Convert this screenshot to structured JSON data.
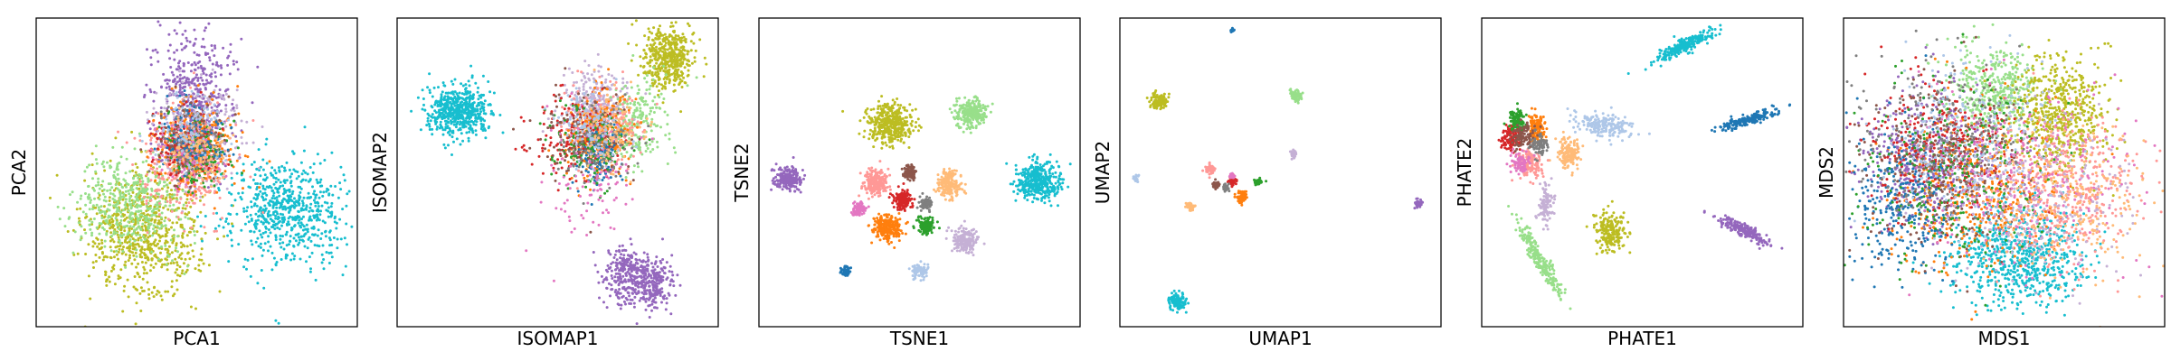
{
  "figure": {
    "palette": [
      "#1f77b4",
      "#ff7f0e",
      "#2ca02c",
      "#d62728",
      "#9467bd",
      "#8c564b",
      "#e377c2",
      "#7f7f7f",
      "#bcbd22",
      "#17becf",
      "#98df8a",
      "#ff9896",
      "#c5b0d5",
      "#ffbb78",
      "#aec7e8"
    ]
  },
  "chart_data": [
    {
      "type": "scatter",
      "title": "",
      "xlabel": "PCA1",
      "ylabel": "PCA2",
      "grid": false,
      "ticks": "none",
      "clusters": [
        {
          "color": "#bcbd22",
          "x": 0.33,
          "y": 0.3,
          "sx": 0.09,
          "sy": 0.1,
          "n": 700
        },
        {
          "color": "#98df8a",
          "x": 0.3,
          "y": 0.4,
          "sx": 0.08,
          "sy": 0.08,
          "n": 450
        },
        {
          "color": "#17becf",
          "x": 0.78,
          "y": 0.38,
          "sx": 0.09,
          "sy": 0.09,
          "n": 650
        },
        {
          "color": "#9467bd",
          "x": 0.49,
          "y": 0.73,
          "sx": 0.06,
          "sy": 0.11,
          "n": 500
        },
        {
          "color": "#c5b0d5",
          "x": 0.5,
          "y": 0.62,
          "sx": 0.07,
          "sy": 0.08,
          "n": 300
        },
        {
          "color": "#ff9896",
          "x": 0.47,
          "y": 0.52,
          "sx": 0.07,
          "sy": 0.08,
          "n": 300
        },
        {
          "color": "#ff7f0e",
          "x": 0.49,
          "y": 0.58,
          "sx": 0.06,
          "sy": 0.07,
          "n": 320
        },
        {
          "color": "#d62728",
          "x": 0.47,
          "y": 0.58,
          "sx": 0.05,
          "sy": 0.06,
          "n": 160
        },
        {
          "color": "#2ca02c",
          "x": 0.5,
          "y": 0.57,
          "sx": 0.05,
          "sy": 0.06,
          "n": 130
        },
        {
          "color": "#8c564b",
          "x": 0.48,
          "y": 0.6,
          "sx": 0.05,
          "sy": 0.06,
          "n": 100
        },
        {
          "color": "#e377c2",
          "x": 0.47,
          "y": 0.55,
          "sx": 0.05,
          "sy": 0.06,
          "n": 100
        },
        {
          "color": "#7f7f7f",
          "x": 0.49,
          "y": 0.6,
          "sx": 0.05,
          "sy": 0.06,
          "n": 100
        },
        {
          "color": "#1f77b4",
          "x": 0.49,
          "y": 0.62,
          "sx": 0.05,
          "sy": 0.06,
          "n": 100
        },
        {
          "color": "#ffbb78",
          "x": 0.5,
          "y": 0.56,
          "sx": 0.05,
          "sy": 0.06,
          "n": 100
        },
        {
          "color": "#aec7e8",
          "x": 0.48,
          "y": 0.64,
          "sx": 0.05,
          "sy": 0.06,
          "n": 90
        }
      ]
    },
    {
      "type": "scatter",
      "title": "",
      "xlabel": "ISOMAP1",
      "ylabel": "ISOMAP2",
      "grid": false,
      "ticks": "none",
      "clusters": [
        {
          "color": "#17becf",
          "x": 0.19,
          "y": 0.7,
          "sx": 0.05,
          "sy": 0.04,
          "n": 550
        },
        {
          "color": "#bcbd22",
          "x": 0.84,
          "y": 0.87,
          "sx": 0.04,
          "sy": 0.05,
          "n": 450
        },
        {
          "color": "#9467bd",
          "x": 0.72,
          "y": 0.17,
          "sx": 0.04,
          "sy": 0.05,
          "n": 300
        },
        {
          "color": "#9467bd",
          "x": 0.8,
          "y": 0.14,
          "sx": 0.03,
          "sy": 0.04,
          "n": 200
        },
        {
          "color": "#c5b0d5",
          "x": 0.62,
          "y": 0.7,
          "sx": 0.05,
          "sy": 0.07,
          "n": 350
        },
        {
          "color": "#98df8a",
          "x": 0.74,
          "y": 0.66,
          "sx": 0.05,
          "sy": 0.07,
          "n": 220
        },
        {
          "color": "#ff9896",
          "x": 0.63,
          "y": 0.65,
          "sx": 0.06,
          "sy": 0.06,
          "n": 220
        },
        {
          "color": "#ff7f0e",
          "x": 0.62,
          "y": 0.62,
          "sx": 0.05,
          "sy": 0.07,
          "n": 250
        },
        {
          "color": "#1f77b4",
          "x": 0.63,
          "y": 0.55,
          "sx": 0.03,
          "sy": 0.05,
          "n": 150
        },
        {
          "color": "#d62728",
          "x": 0.55,
          "y": 0.62,
          "sx": 0.06,
          "sy": 0.07,
          "n": 150
        },
        {
          "color": "#2ca02c",
          "x": 0.6,
          "y": 0.58,
          "sx": 0.06,
          "sy": 0.07,
          "n": 130
        },
        {
          "color": "#8c564b",
          "x": 0.56,
          "y": 0.62,
          "sx": 0.07,
          "sy": 0.07,
          "n": 110
        },
        {
          "color": "#e377c2",
          "x": 0.6,
          "y": 0.5,
          "sx": 0.07,
          "sy": 0.1,
          "n": 110
        },
        {
          "color": "#7f7f7f",
          "x": 0.62,
          "y": 0.6,
          "sx": 0.06,
          "sy": 0.07,
          "n": 100
        },
        {
          "color": "#ffbb78",
          "x": 0.66,
          "y": 0.64,
          "sx": 0.05,
          "sy": 0.06,
          "n": 120
        },
        {
          "color": "#aec7e8",
          "x": 0.6,
          "y": 0.64,
          "sx": 0.05,
          "sy": 0.06,
          "n": 100
        }
      ]
    },
    {
      "type": "scatter",
      "title": "",
      "xlabel": "TSNE1",
      "ylabel": "TSNE2",
      "grid": false,
      "ticks": "none",
      "clusters": [
        {
          "color": "#bcbd22",
          "x": 0.41,
          "y": 0.66,
          "sx": 0.035,
          "sy": 0.033,
          "n": 400
        },
        {
          "color": "#98df8a",
          "x": 0.66,
          "y": 0.69,
          "sx": 0.025,
          "sy": 0.022,
          "n": 250
        },
        {
          "color": "#17becf",
          "x": 0.87,
          "y": 0.47,
          "sx": 0.035,
          "sy": 0.03,
          "n": 400
        },
        {
          "color": "#9467bd",
          "x": 0.09,
          "y": 0.48,
          "sx": 0.02,
          "sy": 0.02,
          "n": 200
        },
        {
          "color": "#ff9896",
          "x": 0.36,
          "y": 0.47,
          "sx": 0.02,
          "sy": 0.02,
          "n": 200
        },
        {
          "color": "#ffbb78",
          "x": 0.59,
          "y": 0.46,
          "sx": 0.02,
          "sy": 0.022,
          "n": 200
        },
        {
          "color": "#8c564b",
          "x": 0.47,
          "y": 0.5,
          "sx": 0.01,
          "sy": 0.012,
          "n": 90
        },
        {
          "color": "#d62728",
          "x": 0.45,
          "y": 0.41,
          "sx": 0.014,
          "sy": 0.014,
          "n": 150
        },
        {
          "color": "#7f7f7f",
          "x": 0.52,
          "y": 0.4,
          "sx": 0.01,
          "sy": 0.01,
          "n": 80
        },
        {
          "color": "#e377c2",
          "x": 0.31,
          "y": 0.38,
          "sx": 0.01,
          "sy": 0.01,
          "n": 80
        },
        {
          "color": "#ff7f0e",
          "x": 0.4,
          "y": 0.32,
          "sx": 0.022,
          "sy": 0.02,
          "n": 250
        },
        {
          "color": "#2ca02c",
          "x": 0.52,
          "y": 0.33,
          "sx": 0.014,
          "sy": 0.014,
          "n": 120
        },
        {
          "color": "#c5b0d5",
          "x": 0.64,
          "y": 0.28,
          "sx": 0.02,
          "sy": 0.02,
          "n": 180
        },
        {
          "color": "#aec7e8",
          "x": 0.5,
          "y": 0.18,
          "sx": 0.012,
          "sy": 0.012,
          "n": 90
        },
        {
          "color": "#1f77b4",
          "x": 0.27,
          "y": 0.18,
          "sx": 0.008,
          "sy": 0.008,
          "n": 60
        }
      ]
    },
    {
      "type": "scatter",
      "title": "",
      "xlabel": "UMAP1",
      "ylabel": "UMAP2",
      "grid": false,
      "ticks": "none",
      "clusters": [
        {
          "color": "#1f77b4",
          "x": 0.35,
          "y": 0.96,
          "sx": 0.003,
          "sy": 0.004,
          "n": 20
        },
        {
          "color": "#bcbd22",
          "x": 0.12,
          "y": 0.73,
          "sx": 0.012,
          "sy": 0.012,
          "n": 120
        },
        {
          "color": "#98df8a",
          "x": 0.55,
          "y": 0.75,
          "sx": 0.008,
          "sy": 0.01,
          "n": 70
        },
        {
          "color": "#c5b0d5",
          "x": 0.54,
          "y": 0.56,
          "sx": 0.005,
          "sy": 0.007,
          "n": 35
        },
        {
          "color": "#aec7e8",
          "x": 0.05,
          "y": 0.48,
          "sx": 0.004,
          "sy": 0.006,
          "n": 30
        },
        {
          "color": "#9467bd",
          "x": 0.93,
          "y": 0.4,
          "sx": 0.006,
          "sy": 0.007,
          "n": 45
        },
        {
          "color": "#ff9896",
          "x": 0.28,
          "y": 0.51,
          "sx": 0.008,
          "sy": 0.007,
          "n": 60
        },
        {
          "color": "#d62728",
          "x": 0.35,
          "y": 0.47,
          "sx": 0.006,
          "sy": 0.006,
          "n": 50
        },
        {
          "color": "#8c564b",
          "x": 0.3,
          "y": 0.46,
          "sx": 0.006,
          "sy": 0.006,
          "n": 40
        },
        {
          "color": "#7f7f7f",
          "x": 0.33,
          "y": 0.45,
          "sx": 0.006,
          "sy": 0.006,
          "n": 40
        },
        {
          "color": "#2ca02c",
          "x": 0.43,
          "y": 0.47,
          "sx": 0.008,
          "sy": 0.005,
          "n": 45
        },
        {
          "color": "#ff7f0e",
          "x": 0.38,
          "y": 0.42,
          "sx": 0.008,
          "sy": 0.009,
          "n": 70
        },
        {
          "color": "#ffbb78",
          "x": 0.22,
          "y": 0.39,
          "sx": 0.007,
          "sy": 0.008,
          "n": 55
        },
        {
          "color": "#e377c2",
          "x": 0.35,
          "y": 0.49,
          "sx": 0.004,
          "sy": 0.004,
          "n": 20
        },
        {
          "color": "#17becf",
          "x": 0.18,
          "y": 0.08,
          "sx": 0.012,
          "sy": 0.014,
          "n": 120
        }
      ]
    },
    {
      "type": "scatter",
      "title": "",
      "xlabel": "PHATE1",
      "ylabel": "PHATE2",
      "grid": false,
      "ticks": "none",
      "clusters": [
        {
          "color": "#17becf",
          "x": 0.63,
          "y": 0.91,
          "sx": 0.05,
          "sy": 0.01,
          "n": 250,
          "rot": 0.45
        },
        {
          "color": "#1f77b4",
          "x": 0.83,
          "y": 0.67,
          "sx": 0.045,
          "sy": 0.008,
          "n": 200,
          "rot": 0.3
        },
        {
          "color": "#9467bd",
          "x": 0.82,
          "y": 0.31,
          "sx": 0.045,
          "sy": 0.01,
          "n": 200,
          "rot": -0.45
        },
        {
          "color": "#98df8a",
          "x": 0.18,
          "y": 0.22,
          "sx": 0.065,
          "sy": 0.01,
          "n": 250,
          "rot": -1.05
        },
        {
          "color": "#bcbd22",
          "x": 0.4,
          "y": 0.31,
          "sx": 0.025,
          "sy": 0.035,
          "n": 200
        },
        {
          "color": "#aec7e8",
          "x": 0.39,
          "y": 0.65,
          "sx": 0.045,
          "sy": 0.02,
          "n": 200,
          "rot": -0.2
        },
        {
          "color": "#ffbb78",
          "x": 0.27,
          "y": 0.56,
          "sx": 0.02,
          "sy": 0.025,
          "n": 150
        },
        {
          "color": "#c5b0d5",
          "x": 0.2,
          "y": 0.4,
          "sx": 0.012,
          "sy": 0.03,
          "n": 100
        },
        {
          "color": "#ff9896",
          "x": 0.15,
          "y": 0.53,
          "sx": 0.02,
          "sy": 0.025,
          "n": 120
        },
        {
          "color": "#d62728",
          "x": 0.09,
          "y": 0.61,
          "sx": 0.015,
          "sy": 0.02,
          "n": 120
        },
        {
          "color": "#ff7f0e",
          "x": 0.17,
          "y": 0.64,
          "sx": 0.015,
          "sy": 0.025,
          "n": 140
        },
        {
          "color": "#2ca02c",
          "x": 0.11,
          "y": 0.67,
          "sx": 0.015,
          "sy": 0.018,
          "n": 100
        },
        {
          "color": "#8c564b",
          "x": 0.13,
          "y": 0.62,
          "sx": 0.018,
          "sy": 0.018,
          "n": 100
        },
        {
          "color": "#7f7f7f",
          "x": 0.18,
          "y": 0.59,
          "sx": 0.015,
          "sy": 0.018,
          "n": 80
        },
        {
          "color": "#e377c2",
          "x": 0.12,
          "y": 0.53,
          "sx": 0.015,
          "sy": 0.02,
          "n": 80
        }
      ]
    },
    {
      "type": "scatter",
      "title": "",
      "xlabel": "MDS1",
      "ylabel": "MDS2",
      "grid": false,
      "ticks": "none",
      "clusters": [
        {
          "color": "#98df8a",
          "x": 0.47,
          "y": 0.78,
          "sx": 0.07,
          "sy": 0.07,
          "n": 400
        },
        {
          "color": "#bcbd22",
          "x": 0.67,
          "y": 0.68,
          "sx": 0.08,
          "sy": 0.09,
          "n": 600
        },
        {
          "color": "#17becf",
          "x": 0.55,
          "y": 0.22,
          "sx": 0.1,
          "sy": 0.08,
          "n": 700
        },
        {
          "color": "#ff9896",
          "x": 0.7,
          "y": 0.45,
          "sx": 0.12,
          "sy": 0.12,
          "n": 400
        },
        {
          "color": "#ff7f0e",
          "x": 0.4,
          "y": 0.45,
          "sx": 0.14,
          "sy": 0.13,
          "n": 500
        },
        {
          "color": "#9467bd",
          "x": 0.25,
          "y": 0.55,
          "sx": 0.1,
          "sy": 0.12,
          "n": 400
        },
        {
          "color": "#1f77b4",
          "x": 0.18,
          "y": 0.42,
          "sx": 0.08,
          "sy": 0.12,
          "n": 300
        },
        {
          "color": "#d62728",
          "x": 0.3,
          "y": 0.58,
          "sx": 0.12,
          "sy": 0.12,
          "n": 300
        },
        {
          "color": "#2ca02c",
          "x": 0.35,
          "y": 0.5,
          "sx": 0.14,
          "sy": 0.14,
          "n": 300
        },
        {
          "color": "#8c564b",
          "x": 0.32,
          "y": 0.5,
          "sx": 0.14,
          "sy": 0.14,
          "n": 250
        },
        {
          "color": "#e377c2",
          "x": 0.55,
          "y": 0.48,
          "sx": 0.16,
          "sy": 0.15,
          "n": 300
        },
        {
          "color": "#7f7f7f",
          "x": 0.3,
          "y": 0.62,
          "sx": 0.13,
          "sy": 0.12,
          "n": 250
        },
        {
          "color": "#c5b0d5",
          "x": 0.6,
          "y": 0.42,
          "sx": 0.15,
          "sy": 0.14,
          "n": 250
        },
        {
          "color": "#ffbb78",
          "x": 0.7,
          "y": 0.4,
          "sx": 0.12,
          "sy": 0.12,
          "n": 250
        },
        {
          "color": "#aec7e8",
          "x": 0.4,
          "y": 0.6,
          "sx": 0.14,
          "sy": 0.14,
          "n": 250
        }
      ]
    }
  ]
}
